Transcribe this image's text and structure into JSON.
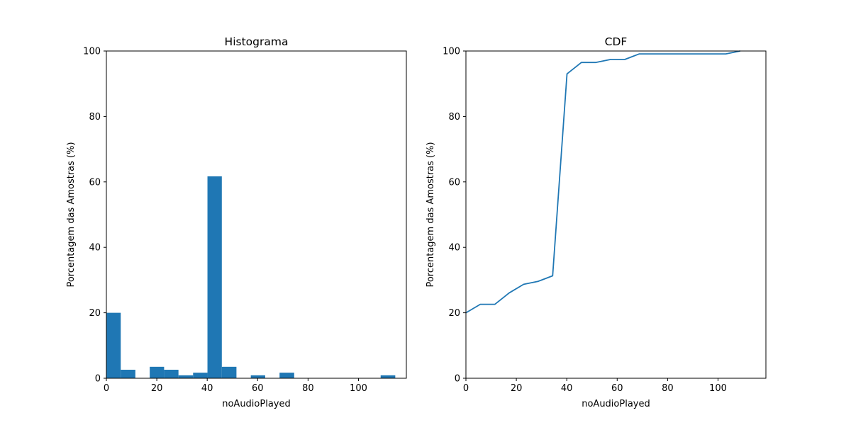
{
  "chart_data": [
    {
      "type": "bar",
      "title": "Histograma",
      "xlabel": "noAudioPlayed",
      "ylabel": "Porcentagem das Amostras (%)",
      "xlim": [
        0,
        119
      ],
      "ylim": [
        0,
        100
      ],
      "xticks": [
        "0",
        "20",
        "40",
        "60",
        "80",
        "100"
      ],
      "yticks": [
        "0",
        "20",
        "40",
        "60",
        "80",
        "100"
      ],
      "color": "#1f77b4",
      "bin_edges": [
        0,
        5.7,
        11.5,
        17.2,
        22.9,
        28.6,
        34.4,
        40.1,
        45.8,
        51.6,
        57.3,
        63.0,
        68.7,
        74.5,
        80.2,
        85.9,
        91.6,
        97.4,
        103.1,
        108.8,
        114.6
      ],
      "values": [
        20.0,
        2.6,
        0.0,
        3.5,
        2.6,
        0.9,
        1.7,
        61.7,
        3.5,
        0.0,
        0.9,
        0.0,
        1.7,
        0.0,
        0.0,
        0.0,
        0.0,
        0.0,
        0.0,
        0.9
      ]
    },
    {
      "type": "line",
      "title": "CDF",
      "xlabel": "noAudioPlayed",
      "ylabel": "Porcentagem das Amostras (%)",
      "xlim": [
        0,
        119
      ],
      "ylim": [
        0,
        100
      ],
      "xticks": [
        "0",
        "20",
        "40",
        "60",
        "80",
        "100"
      ],
      "yticks": [
        "0",
        "20",
        "40",
        "60",
        "80",
        "100"
      ],
      "color": "#1f77b4",
      "x": [
        0,
        5.7,
        11.5,
        17.2,
        22.9,
        28.6,
        34.4,
        40.1,
        45.8,
        51.6,
        57.3,
        63.0,
        68.7,
        74.5,
        80.2,
        85.9,
        91.6,
        97.4,
        103.1,
        108.8
      ],
      "y": [
        20.0,
        22.6,
        22.6,
        26.1,
        28.7,
        29.6,
        31.3,
        93.0,
        96.5,
        96.5,
        97.4,
        97.4,
        99.1,
        99.1,
        99.1,
        99.1,
        99.1,
        99.1,
        99.1,
        100.0
      ]
    }
  ]
}
